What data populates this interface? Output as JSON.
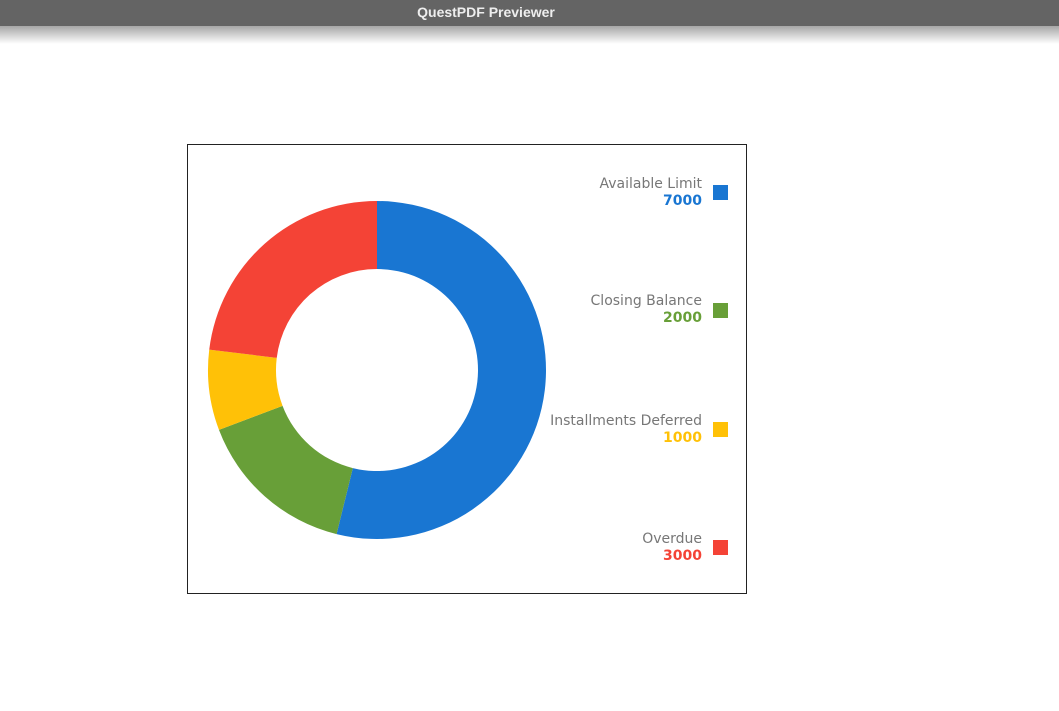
{
  "window": {
    "title": "QuestPDF Previewer"
  },
  "chart_data": {
    "type": "pie",
    "donut": true,
    "categories": [
      "Available Limit",
      "Closing Balance",
      "Installments Deferred",
      "Overdue"
    ],
    "values": [
      7000,
      2000,
      1000,
      3000
    ],
    "colors": [
      "#1976d2",
      "#689f38",
      "#ffc107",
      "#f44336"
    ],
    "legend": "right"
  },
  "legend": {
    "items": [
      {
        "label": "Available Limit",
        "value": "7000",
        "color": "#1976d2"
      },
      {
        "label": "Closing Balance",
        "value": "2000",
        "color": "#689f38"
      },
      {
        "label": "Installments Deferred",
        "value": "1000",
        "color": "#ffc107"
      },
      {
        "label": "Overdue",
        "value": "3000",
        "color": "#f44336"
      }
    ]
  }
}
